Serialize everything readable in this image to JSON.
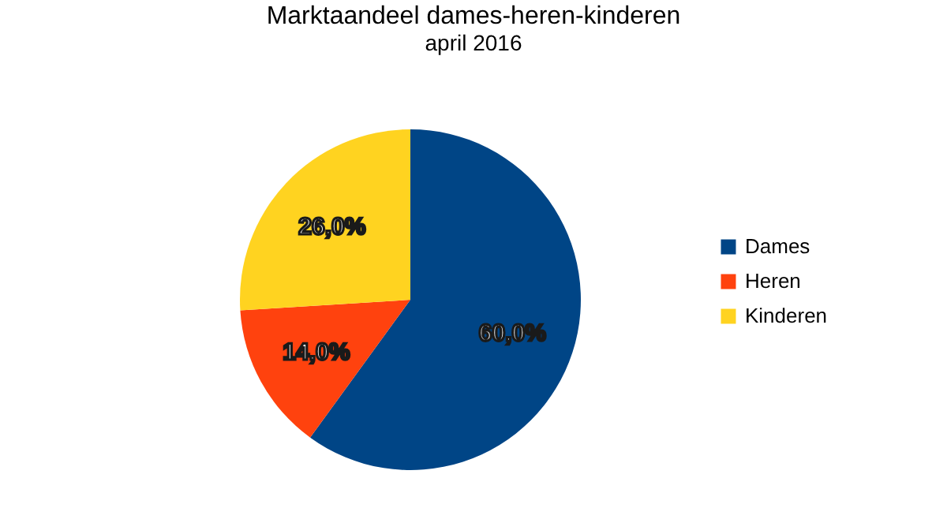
{
  "chart_data": {
    "type": "pie",
    "title": "Marktaandeel dames-heren-kinderen",
    "subtitle": "april 2016",
    "categories": [
      "Dames",
      "Heren",
      "Kinderen"
    ],
    "values": [
      60,
      14,
      26
    ],
    "colors": [
      "#004586",
      "#ff420e",
      "#ffd320"
    ],
    "value_labels": [
      "60,0%",
      "14,0%",
      "26,0%"
    ],
    "legend": "right"
  }
}
